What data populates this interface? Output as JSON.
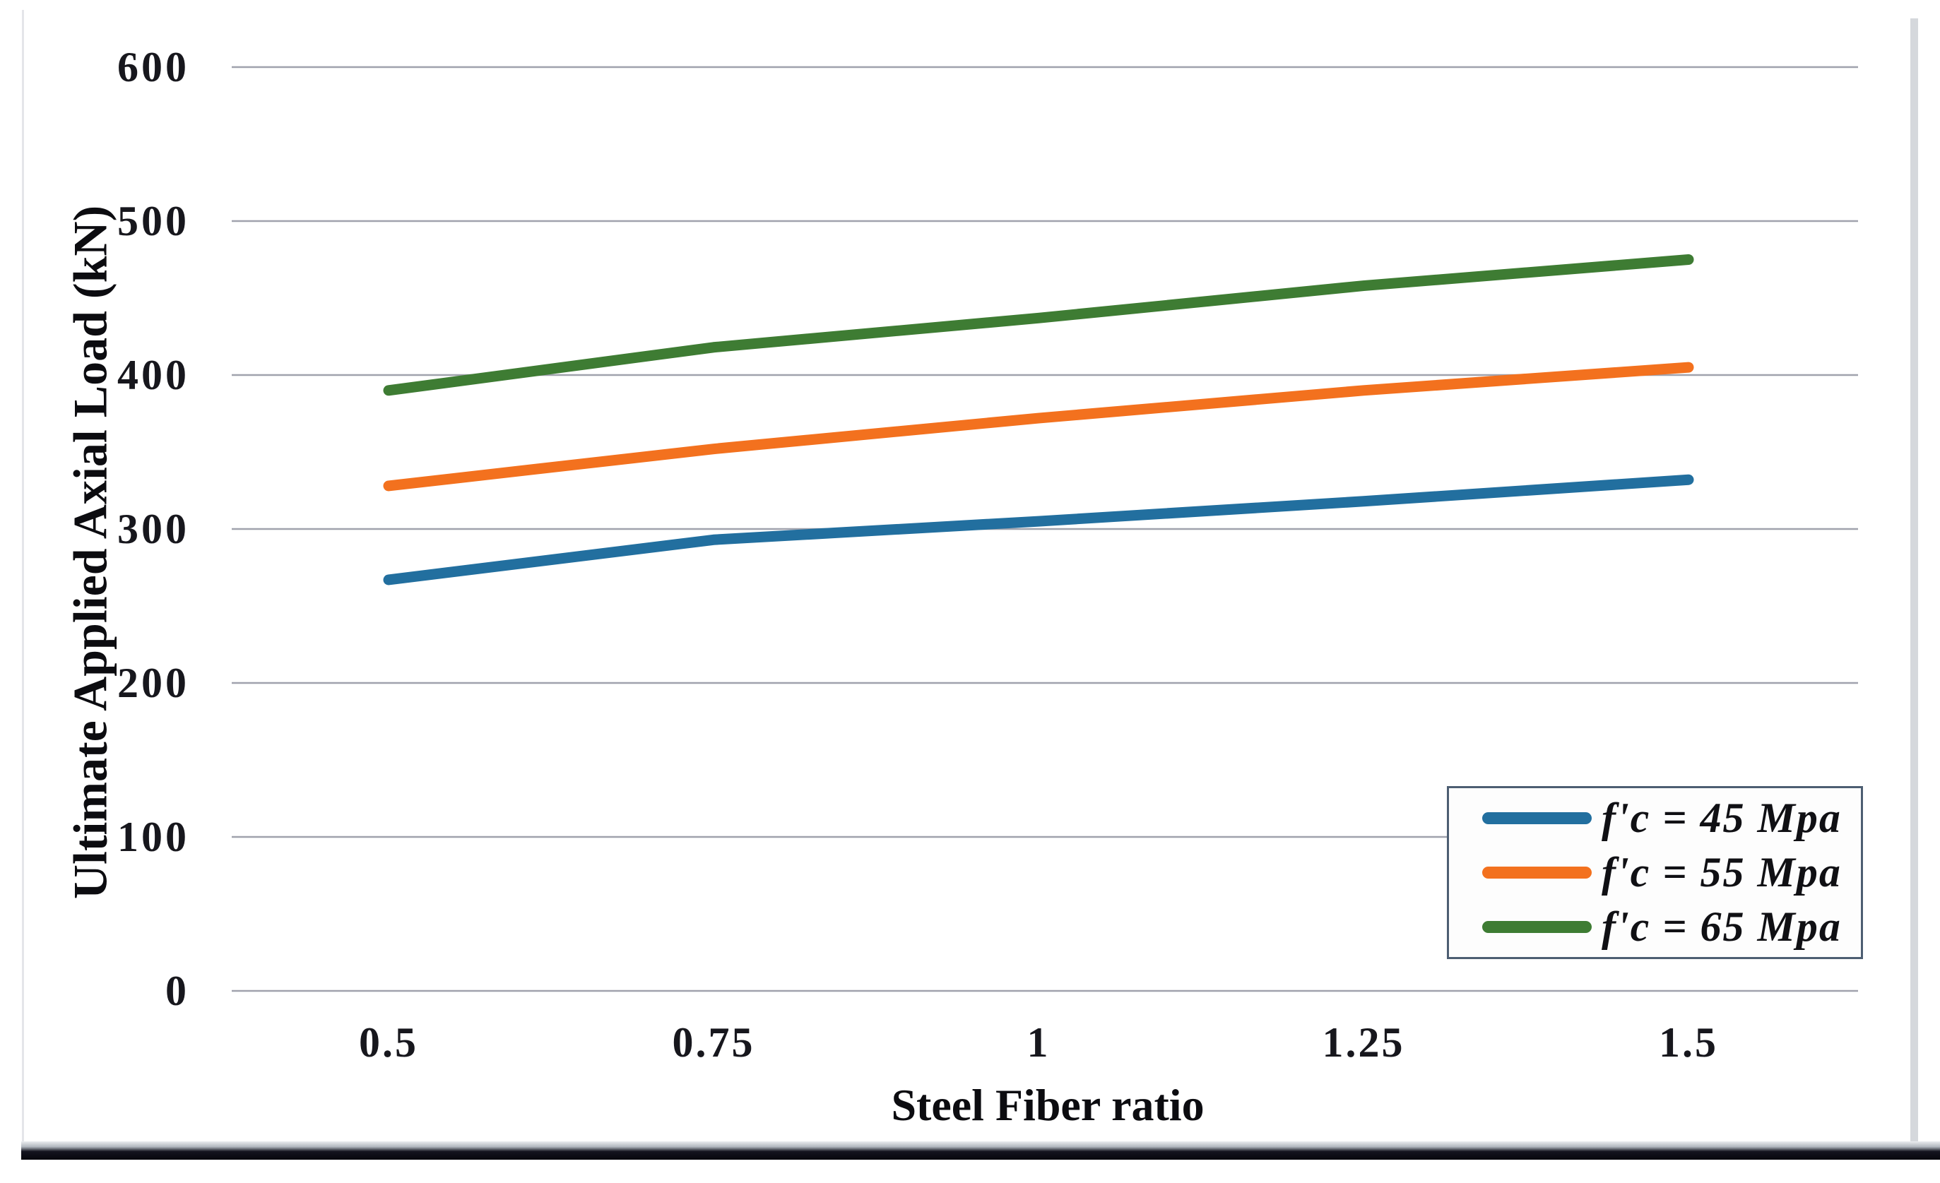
{
  "chart_data": {
    "type": "line",
    "x": [
      0.5,
      0.75,
      1,
      1.25,
      1.5
    ],
    "xtick_labels": [
      "0.5",
      "0.75",
      "1",
      "1.25",
      "1.5"
    ],
    "series": [
      {
        "name": "f'c = 45 Mpa",
        "color": "#226f9f",
        "values": [
          267,
          293,
          305,
          318,
          332
        ]
      },
      {
        "name": "f'c = 55 Mpa",
        "color": "#f3711e",
        "values": [
          328,
          352,
          372,
          390,
          405
        ]
      },
      {
        "name": "f'c = 65 Mpa",
        "color": "#3e7c33",
        "values": [
          390,
          418,
          437,
          458,
          475
        ]
      }
    ],
    "title": "",
    "xlabel": "Steel Fiber ratio",
    "ylabel": "Ultimate Applied Axial Load (kN)",
    "ylim": [
      0,
      600
    ],
    "yticks": [
      0,
      100,
      200,
      300,
      400,
      500,
      600
    ],
    "grid": "horizontal",
    "legend_position": "bottom-right",
    "colors": {
      "gridline": "#a0a2ad",
      "legend_border": "#4d5e72",
      "text": "#15151a"
    }
  }
}
